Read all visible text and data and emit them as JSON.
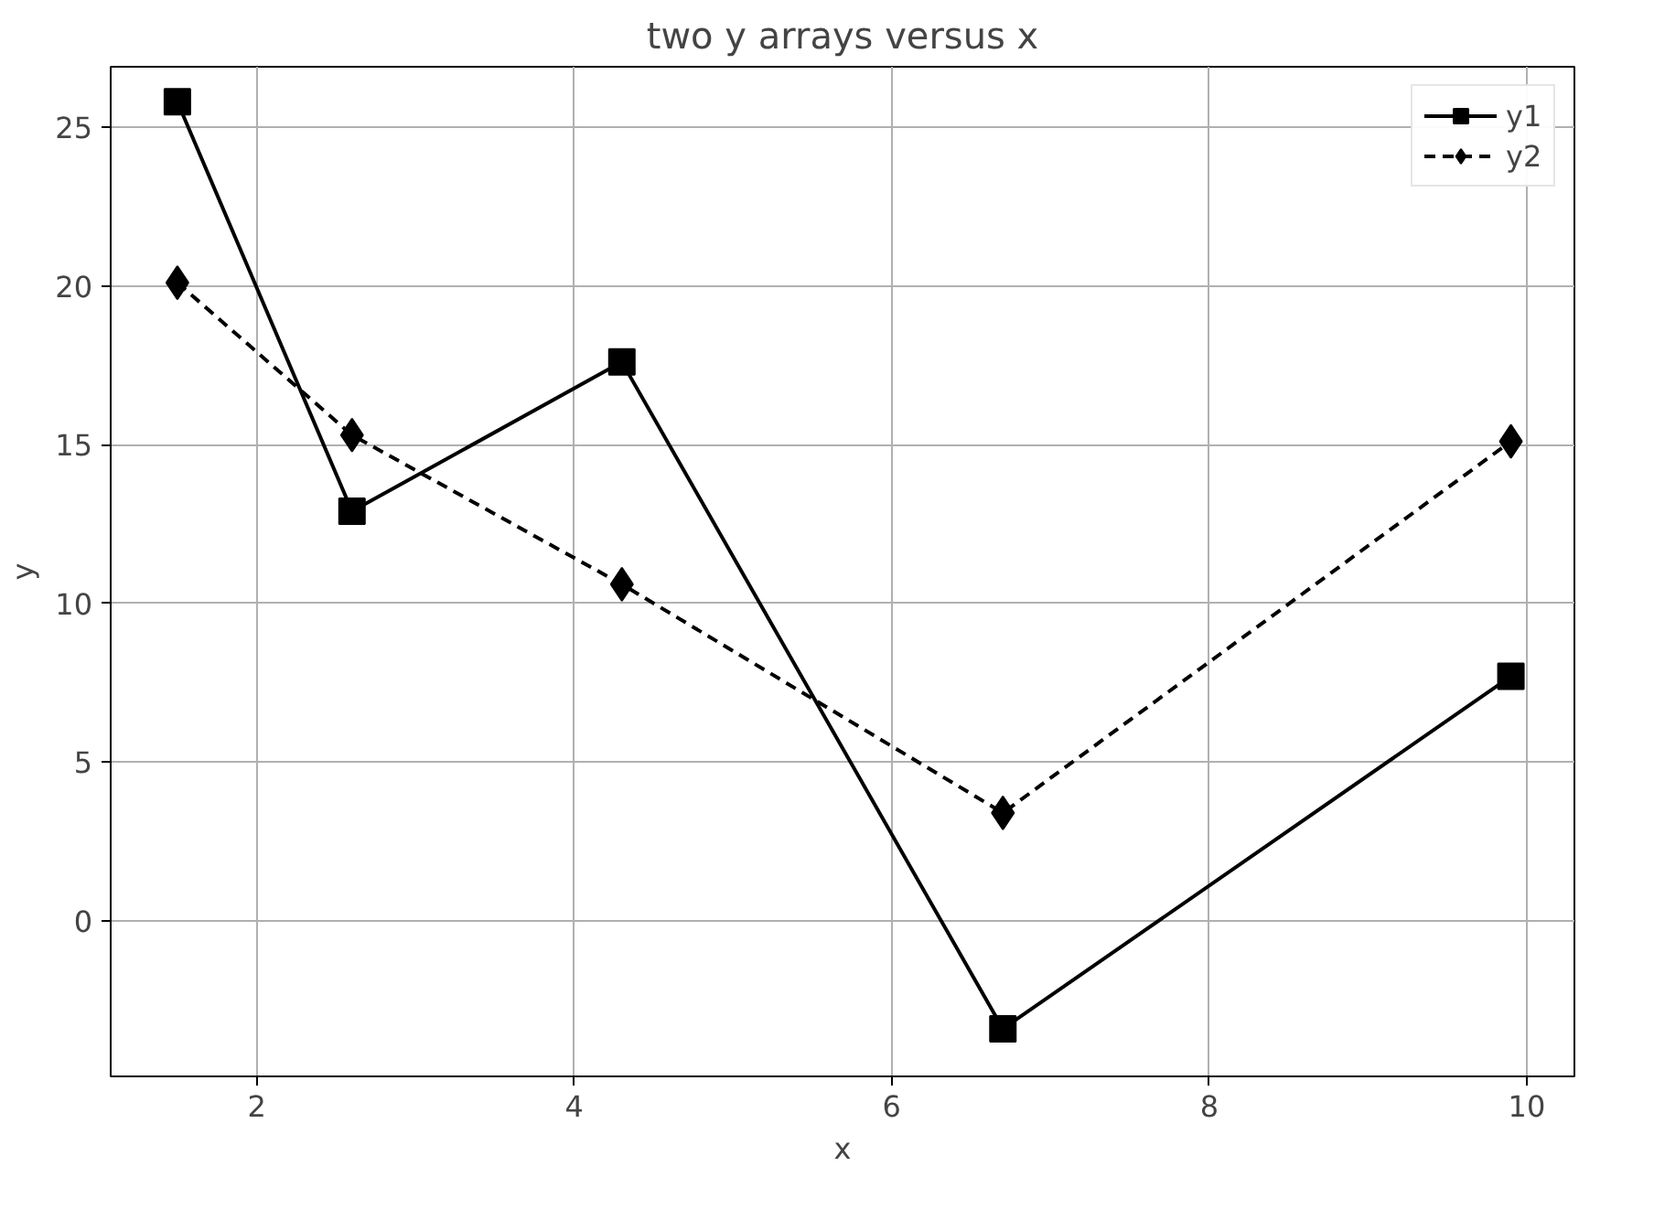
{
  "chart_data": {
    "type": "line",
    "title": "two y arrays versus x",
    "xlabel": "x",
    "ylabel": "y",
    "x": [
      1.5,
      2.6,
      4.3,
      6.7,
      9.9
    ],
    "series": [
      {
        "name": "y1",
        "color": "#000000",
        "values": [
          25.8,
          12.9,
          17.6,
          -3.4,
          7.7
        ],
        "marker": "square",
        "line_style": "solid"
      },
      {
        "name": "y2",
        "color": "#000000",
        "values": [
          20.1,
          15.3,
          10.6,
          3.4,
          15.1
        ],
        "marker": "diamond",
        "line_style": "dashed"
      }
    ],
    "xlim": [
      1.08,
      10.3
    ],
    "ylim": [
      -4.9,
      26.9
    ],
    "xticks": [
      2,
      4,
      6,
      8,
      10
    ],
    "yticks": [
      0,
      5,
      10,
      15,
      20,
      25
    ],
    "grid": true,
    "legend": "top right"
  }
}
